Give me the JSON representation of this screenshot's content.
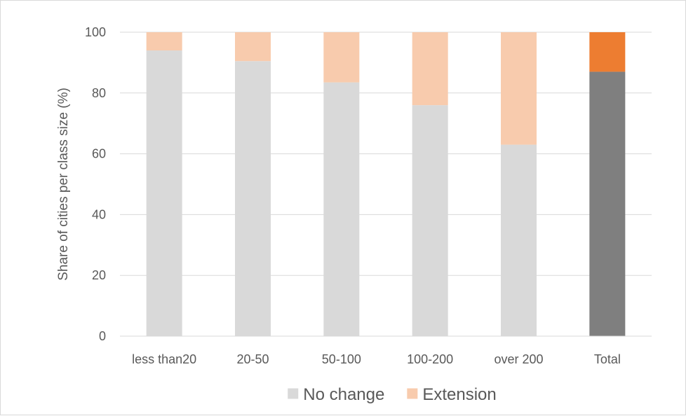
{
  "chart_data": {
    "type": "bar",
    "stacked": true,
    "categories": [
      "less than20",
      "20-50",
      "50-100",
      "100-200",
      "over 200",
      "Total"
    ],
    "series": [
      {
        "name": "No change",
        "values": [
          94,
          90.5,
          83.5,
          76,
          63,
          87
        ],
        "color": "#d9d9d9",
        "highlight_color": "#7f7f7f"
      },
      {
        "name": "Extension",
        "values": [
          6,
          9.5,
          16.5,
          24,
          37,
          13
        ],
        "color": "#f8cbad",
        "highlight_color": "#ed7d31"
      }
    ],
    "highlight_category": "Total",
    "ylabel": "Share of cities per class size  (%)",
    "ylim": [
      0,
      100
    ],
    "yticks": [
      0,
      20,
      40,
      60,
      80,
      100
    ],
    "grid": true,
    "legend": "bottom"
  }
}
